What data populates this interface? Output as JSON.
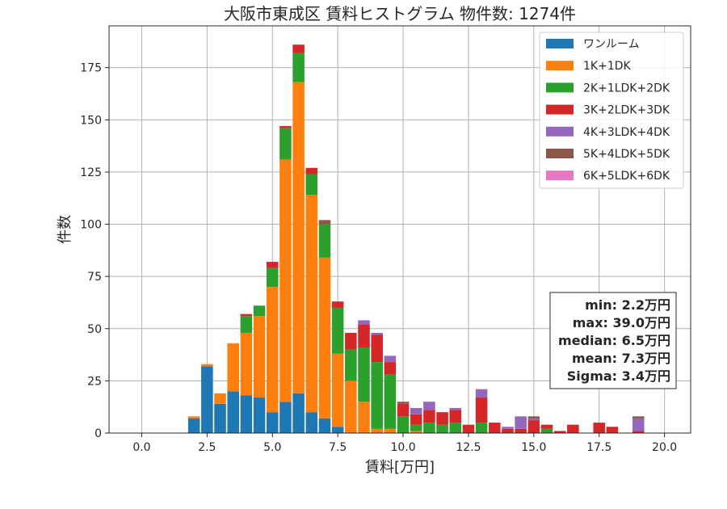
{
  "chart_data": {
    "type": "bar",
    "stacked": true,
    "title": "大阪市東成区 賃料ヒストグラム  物件数: 1274件",
    "xlabel": "賃料[万円]",
    "ylabel": "件数",
    "xlim": [
      -1.25,
      21.0
    ],
    "ylim": [
      0,
      195
    ],
    "xticks": [
      0.0,
      2.5,
      5.0,
      7.5,
      10.0,
      12.5,
      15.0,
      17.5,
      20.0
    ],
    "xtick_labels": [
      "0.0",
      "2.5",
      "5.0",
      "7.5",
      "10.0",
      "12.5",
      "15.0",
      "17.5",
      "20.0"
    ],
    "yticks": [
      0,
      25,
      50,
      75,
      100,
      125,
      150,
      175
    ],
    "ytick_labels": [
      "0",
      "25",
      "50",
      "75",
      "100",
      "125",
      "150",
      "175"
    ],
    "grid": true,
    "legend_position": "top-right",
    "bin_width": 0.5,
    "x": [
      2.0,
      2.5,
      3.0,
      3.5,
      4.0,
      4.5,
      5.0,
      5.5,
      6.0,
      6.5,
      7.0,
      7.5,
      8.0,
      8.5,
      9.0,
      9.5,
      10.0,
      10.5,
      11.0,
      11.5,
      12.0,
      12.5,
      13.0,
      13.5,
      14.0,
      14.5,
      15.0,
      15.5,
      16.0,
      16.5,
      17.0,
      17.5,
      18.0,
      18.5,
      19.0,
      19.5
    ],
    "series": [
      {
        "name": "ワンルーム",
        "color": "#1f77b4",
        "values": [
          7,
          32,
          14,
          20,
          18,
          17,
          10,
          15,
          19,
          10,
          7,
          3,
          0,
          0,
          0,
          0,
          0,
          0,
          0,
          0,
          0,
          0,
          0,
          0,
          0,
          0,
          0,
          0,
          0,
          0,
          0,
          0,
          0,
          0,
          0,
          0
        ]
      },
      {
        "name": "1K+1DK",
        "color": "#ff7f0e",
        "values": [
          1,
          1,
          5,
          23,
          30,
          39,
          60,
          116,
          149,
          104,
          77,
          35,
          25,
          15,
          2,
          2,
          0,
          1,
          0,
          0,
          0,
          0,
          0,
          0,
          0,
          0,
          0,
          0,
          0,
          0,
          0,
          0,
          0,
          0,
          0,
          0
        ]
      },
      {
        "name": "2K+1LDK+2DK",
        "color": "#2ca02c",
        "values": [
          0,
          0,
          0,
          0,
          8,
          5,
          9,
          15,
          14,
          10,
          16,
          22,
          15,
          26,
          32,
          26,
          8,
          3,
          5,
          4,
          5,
          0,
          5,
          0,
          0,
          0,
          0,
          2,
          0,
          0,
          0,
          0,
          0,
          0,
          0,
          0
        ]
      },
      {
        "name": "3K+2LDK+3DK",
        "color": "#d62728",
        "values": [
          0,
          0,
          0,
          0,
          1,
          0,
          3,
          1,
          4,
          3,
          0,
          3,
          8,
          11,
          13,
          6,
          6,
          5,
          6,
          6,
          6,
          4,
          12,
          5,
          2,
          2,
          6,
          2,
          1,
          4,
          0,
          5,
          3,
          0,
          1,
          0
        ]
      },
      {
        "name": "4K+3LDK+4DK",
        "color": "#9467bd",
        "values": [
          0,
          0,
          0,
          0,
          0,
          0,
          0,
          0,
          0,
          0,
          0,
          0,
          0,
          2,
          1,
          3,
          0,
          3,
          4,
          0,
          1,
          0,
          4,
          0,
          1,
          6,
          1,
          0,
          0,
          0,
          0,
          0,
          0,
          0,
          6,
          0
        ]
      },
      {
        "name": "5K+4LDK+5DK",
        "color": "#8c564b",
        "values": [
          0,
          0,
          0,
          0,
          0,
          0,
          0,
          0,
          0,
          0,
          2,
          0,
          0,
          0,
          0,
          0,
          1,
          0,
          0,
          0,
          0,
          0,
          0,
          0,
          0,
          0,
          1,
          0,
          0,
          0,
          0,
          0,
          0,
          0,
          1,
          0
        ]
      },
      {
        "name": "6K+5LDK+6DK",
        "color": "#e377c2",
        "values": [
          0,
          0,
          0,
          0,
          0,
          0,
          0,
          0,
          0,
          0,
          0,
          0,
          0,
          0,
          0,
          0,
          0,
          0,
          0,
          0,
          0,
          0,
          0,
          0,
          0,
          0,
          0,
          0,
          0,
          0,
          0,
          0,
          0,
          0,
          0,
          0
        ]
      }
    ],
    "stats": [
      "min: 2.2万円",
      "max: 39.0万円",
      "median: 6.5万円",
      "mean: 7.3万円",
      "Sigma: 3.4万円"
    ]
  }
}
